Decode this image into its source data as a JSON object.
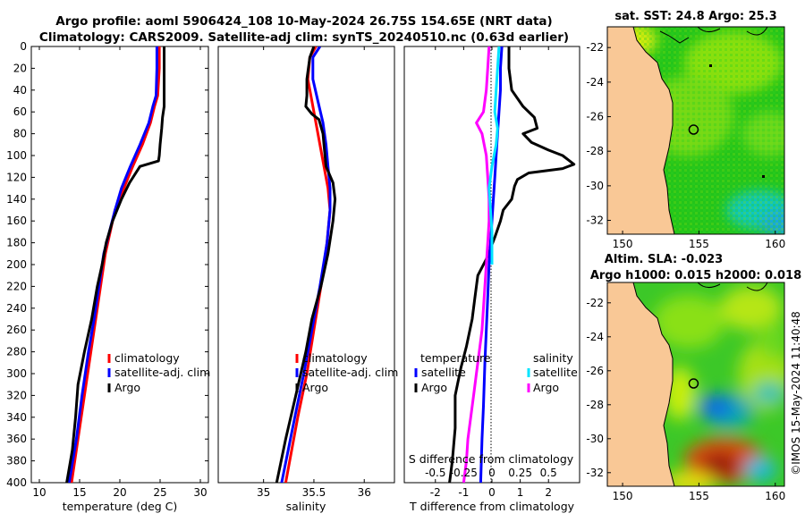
{
  "header": {
    "line1": "Argo profile: aoml 5906424_108 10-May-2024 26.75S 154.65E (NRT data)",
    "line2": "Climatology: CARS2009. Satellite-adj clim: synTS_20240510.nc (0.63d earlier)"
  },
  "colors": {
    "climatology": "#ff0000",
    "satellite": "#0000ff",
    "argo": "#000000",
    "s_argo": "#ff00ff",
    "s_sat": "#00e5ff",
    "land": "#f9c896"
  },
  "chart_data": [
    {
      "type": "line",
      "id": "temperature",
      "xlabel": "temperature (deg C)",
      "ylabel": "",
      "xlim": [
        9,
        31
      ],
      "ylim": [
        400,
        0
      ],
      "xticks": [
        10,
        15,
        20,
        25,
        30
      ],
      "yticks": [
        0,
        20,
        40,
        60,
        80,
        100,
        120,
        140,
        160,
        180,
        200,
        220,
        240,
        260,
        280,
        300,
        320,
        340,
        360,
        380,
        400
      ],
      "series": [
        {
          "name": "climatology",
          "color": "#ff0000",
          "points": [
            [
              24.9,
              0
            ],
            [
              24.9,
              20
            ],
            [
              24.7,
              45
            ],
            [
              24.3,
              55
            ],
            [
              23.8,
              70
            ],
            [
              22.8,
              90
            ],
            [
              21.6,
              110
            ],
            [
              20.5,
              130
            ],
            [
              19.4,
              150
            ],
            [
              18.8,
              170
            ],
            [
              18.2,
              190
            ],
            [
              17.6,
              220
            ],
            [
              17.0,
              250
            ],
            [
              16.4,
              280
            ],
            [
              15.6,
              320
            ],
            [
              14.8,
              360
            ],
            [
              14.0,
              400
            ]
          ]
        },
        {
          "name": "satellite-adj. clim",
          "color": "#0000ff",
          "points": [
            [
              24.6,
              0
            ],
            [
              24.6,
              20
            ],
            [
              24.5,
              45
            ],
            [
              24.1,
              55
            ],
            [
              23.6,
              70
            ],
            [
              22.5,
              90
            ],
            [
              21.3,
              110
            ],
            [
              20.2,
              130
            ],
            [
              19.4,
              150
            ],
            [
              18.7,
              170
            ],
            [
              18.0,
              190
            ],
            [
              17.4,
              220
            ],
            [
              16.8,
              250
            ],
            [
              16.1,
              280
            ],
            [
              15.3,
              320
            ],
            [
              14.6,
              360
            ],
            [
              13.7,
              400
            ]
          ]
        },
        {
          "name": "Argo",
          "color": "#000000",
          "points": [
            [
              25.5,
              0
            ],
            [
              25.5,
              25
            ],
            [
              25.5,
              55
            ],
            [
              25.3,
              65
            ],
            [
              25.2,
              75
            ],
            [
              25.0,
              90
            ],
            [
              24.9,
              100
            ],
            [
              24.8,
              105
            ],
            [
              22.5,
              110
            ],
            [
              21.2,
              125
            ],
            [
              20.2,
              140
            ],
            [
              19.1,
              160
            ],
            [
              18.3,
              180
            ],
            [
              17.8,
              200
            ],
            [
              17.2,
              220
            ],
            [
              16.5,
              250
            ],
            [
              15.6,
              280
            ],
            [
              14.8,
              310
            ],
            [
              14.5,
              340
            ],
            [
              14.1,
              370
            ],
            [
              13.4,
              400
            ]
          ]
        }
      ],
      "legend": [
        "climatology",
        "satellite-adj. clim",
        "Argo"
      ]
    },
    {
      "type": "line",
      "id": "salinity",
      "xlabel": "salinity",
      "ylabel": "",
      "xlim": [
        34.55,
        36.3
      ],
      "ylim": [
        400,
        0
      ],
      "xticks": [
        35,
        35.5,
        36
      ],
      "series": [
        {
          "name": "climatology",
          "color": "#ff0000",
          "points": [
            [
              35.52,
              0
            ],
            [
              35.46,
              10
            ],
            [
              35.44,
              30
            ],
            [
              35.48,
              50
            ],
            [
              35.52,
              70
            ],
            [
              35.56,
              90
            ],
            [
              35.6,
              110
            ],
            [
              35.64,
              130
            ],
            [
              35.66,
              150
            ],
            [
              35.63,
              180
            ],
            [
              35.57,
              220
            ],
            [
              35.5,
              260
            ],
            [
              35.43,
              300
            ],
            [
              35.34,
              340
            ],
            [
              35.22,
              400
            ]
          ]
        },
        {
          "name": "satellite-adj. clim",
          "color": "#0000ff",
          "points": [
            [
              35.56,
              0
            ],
            [
              35.49,
              10
            ],
            [
              35.49,
              30
            ],
            [
              35.54,
              50
            ],
            [
              35.59,
              70
            ],
            [
              35.62,
              90
            ],
            [
              35.64,
              110
            ],
            [
              35.66,
              130
            ],
            [
              35.66,
              150
            ],
            [
              35.63,
              180
            ],
            [
              35.56,
              220
            ],
            [
              35.48,
              260
            ],
            [
              35.4,
              300
            ],
            [
              35.31,
              340
            ],
            [
              35.18,
              400
            ]
          ]
        },
        {
          "name": "Argo",
          "color": "#000000",
          "points": [
            [
              35.5,
              0
            ],
            [
              35.46,
              10
            ],
            [
              35.43,
              30
            ],
            [
              35.43,
              45
            ],
            [
              35.42,
              55
            ],
            [
              35.48,
              62
            ],
            [
              35.55,
              67
            ],
            [
              35.59,
              80
            ],
            [
              35.6,
              90
            ],
            [
              35.62,
              110
            ],
            [
              35.69,
              125
            ],
            [
              35.71,
              140
            ],
            [
              35.69,
              160
            ],
            [
              35.64,
              190
            ],
            [
              35.57,
              220
            ],
            [
              35.48,
              250
            ],
            [
              35.42,
              280
            ],
            [
              35.32,
              320
            ],
            [
              35.22,
              360
            ],
            [
              35.13,
              400
            ]
          ]
        }
      ],
      "legend": [
        "climatology",
        "satellite-adj. clim",
        "Argo"
      ]
    },
    {
      "type": "line",
      "id": "difference",
      "xlabel": "T difference from climatology",
      "xlabel_top": "S difference from climatology",
      "xlim": [
        -3.1,
        3.1
      ],
      "ylim": [
        400,
        0
      ],
      "xticks": [
        -2,
        -1,
        0,
        1,
        2
      ],
      "xticks_top_labels": [
        "-0.5",
        "-0.25",
        "0",
        "0.25",
        "0.5"
      ],
      "xticks_top_pos": [
        -2,
        -1,
        0,
        1,
        2
      ],
      "series": [
        {
          "name": "Argo T diff",
          "color": "#000000",
          "points": [
            [
              0.6,
              0
            ],
            [
              0.6,
              20
            ],
            [
              0.7,
              40
            ],
            [
              1.1,
              55
            ],
            [
              1.5,
              65
            ],
            [
              1.6,
              75
            ],
            [
              1.1,
              80
            ],
            [
              1.4,
              88
            ],
            [
              2.0,
              95
            ],
            [
              2.5,
              100
            ],
            [
              2.9,
              108
            ],
            [
              2.5,
              112
            ],
            [
              1.3,
              116
            ],
            [
              0.9,
              122
            ],
            [
              0.8,
              128
            ],
            [
              0.7,
              140
            ],
            [
              0.4,
              150
            ],
            [
              0.3,
              160
            ],
            [
              0.1,
              175
            ],
            [
              -0.2,
              195
            ],
            [
              -0.5,
              210
            ],
            [
              -0.6,
              230
            ],
            [
              -0.7,
              250
            ],
            [
              -0.9,
              275
            ],
            [
              -1.1,
              295
            ],
            [
              -1.3,
              320
            ],
            [
              -1.3,
              350
            ],
            [
              -1.4,
              380
            ],
            [
              -1.5,
              400
            ]
          ]
        },
        {
          "name": "satellite T diff",
          "color": "#0000ff",
          "points": [
            [
              0.35,
              0
            ],
            [
              0.3,
              20
            ],
            [
              0.3,
              40
            ],
            [
              0.25,
              60
            ],
            [
              0.2,
              80
            ],
            [
              0.15,
              100
            ],
            [
              0.1,
              120
            ],
            [
              0.05,
              140
            ],
            [
              0.0,
              160
            ],
            [
              -0.05,
              180
            ],
            [
              -0.1,
              200
            ],
            [
              -0.15,
              230
            ],
            [
              -0.2,
              260
            ],
            [
              -0.25,
              290
            ],
            [
              -0.3,
              330
            ],
            [
              -0.35,
              360
            ],
            [
              -0.4,
              400
            ]
          ]
        },
        {
          "name": "Argo S diff",
          "color": "#ff00ff",
          "points": [
            [
              -0.1,
              0
            ],
            [
              -0.15,
              20
            ],
            [
              -0.2,
              40
            ],
            [
              -0.3,
              60
            ],
            [
              -0.55,
              70
            ],
            [
              -0.35,
              80
            ],
            [
              -0.2,
              100
            ],
            [
              -0.15,
              120
            ],
            [
              -0.1,
              140
            ],
            [
              -0.1,
              160
            ],
            [
              -0.15,
              180
            ],
            [
              -0.2,
              200
            ],
            [
              -0.25,
              220
            ],
            [
              -0.3,
              240
            ],
            [
              -0.35,
              260
            ],
            [
              -0.45,
              280
            ],
            [
              -0.55,
              300
            ],
            [
              -0.65,
              320
            ],
            [
              -0.75,
              340
            ],
            [
              -0.85,
              360
            ],
            [
              -0.9,
              380
            ],
            [
              -1.0,
              400
            ]
          ]
        },
        {
          "name": "satellite S diff",
          "color": "#00e5ff",
          "points": [
            [
              0.25,
              0
            ],
            [
              0.2,
              20
            ],
            [
              0.15,
              40
            ],
            [
              0.1,
              60
            ],
            [
              0.2,
              75
            ],
            [
              0.15,
              90
            ],
            [
              0.0,
              110
            ],
            [
              -0.1,
              130
            ],
            [
              -0.05,
              150
            ],
            [
              0.0,
              170
            ],
            [
              0.0,
              200
            ]
          ]
        }
      ],
      "legend_left_title": "temperature",
      "legend_left": [
        "satellite",
        "Argo"
      ],
      "legend_right_title": "salinity",
      "legend_right": [
        "satellite",
        "Argo"
      ]
    },
    {
      "type": "heatmap",
      "id": "sst_map",
      "title": "sat. SST: 24.8 Argo: 25.3",
      "xticks": [
        150,
        155,
        160
      ],
      "yticks": [
        -22,
        -24,
        -26,
        -28,
        -30,
        -32
      ],
      "argo_position": [
        154.65,
        -26.75
      ]
    },
    {
      "type": "heatmap",
      "id": "sla_map",
      "title_line1": "Altim. SLA: -0.023",
      "title_line2": "Argo h1000: 0.015 h2000: 0.018",
      "xticks": [
        150,
        155,
        160
      ],
      "yticks": [
        -22,
        -24,
        -26,
        -28,
        -30,
        -32
      ],
      "argo_position": [
        154.65,
        -26.75
      ]
    }
  ],
  "footer": {
    "credit": "©IMOS 15-May-2024 11:40:48"
  }
}
